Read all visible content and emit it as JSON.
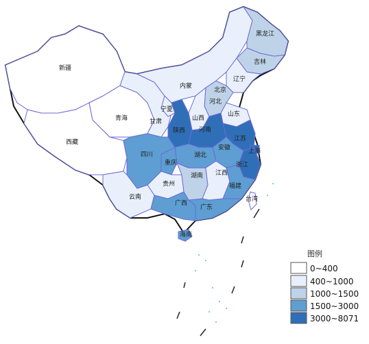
{
  "legend": {
    "title": "图例",
    "bins": [
      {
        "label": "0~400",
        "color": "#ffffff"
      },
      {
        "label": "400~1000",
        "color": "#eaf0fb"
      },
      {
        "label": "1000~1500",
        "color": "#bfd3e8"
      },
      {
        "label": "1500~3000",
        "color": "#5e9ed2"
      },
      {
        "label": "3000~8071",
        "color": "#2f6fb8"
      }
    ]
  },
  "regions": [
    {
      "name": "黑龙江",
      "level": 2
    },
    {
      "name": "吉林",
      "level": 2
    },
    {
      "name": "辽宁",
      "level": 1
    },
    {
      "name": "内蒙",
      "level": 1
    },
    {
      "name": "北京",
      "level": 2
    },
    {
      "name": "河北",
      "level": 2
    },
    {
      "name": "山西",
      "level": 1
    },
    {
      "name": "山东",
      "level": 1
    },
    {
      "name": "河南",
      "level": 4
    },
    {
      "name": "陕西",
      "level": 4
    },
    {
      "name": "宁夏",
      "level": 1
    },
    {
      "name": "甘肃",
      "level": 1
    },
    {
      "name": "青海",
      "level": 0
    },
    {
      "name": "新疆",
      "level": 0
    },
    {
      "name": "西藏",
      "level": 0
    },
    {
      "name": "四川",
      "level": 3
    },
    {
      "name": "重庆",
      "level": 3
    },
    {
      "name": "湖北",
      "level": 3
    },
    {
      "name": "安徽",
      "level": 3
    },
    {
      "name": "江苏",
      "level": 4
    },
    {
      "name": "上海",
      "level": 4
    },
    {
      "name": "浙江",
      "level": 4
    },
    {
      "name": "江西",
      "level": 1
    },
    {
      "name": "湖南",
      "level": 2
    },
    {
      "name": "贵州",
      "level": 1
    },
    {
      "name": "云南",
      "level": 1
    },
    {
      "name": "广西",
      "level": 3
    },
    {
      "name": "广东",
      "level": 3
    },
    {
      "name": "福建",
      "level": 3
    },
    {
      "name": "台湾",
      "level": 0
    },
    {
      "name": "海南",
      "level": 3
    }
  ]
}
